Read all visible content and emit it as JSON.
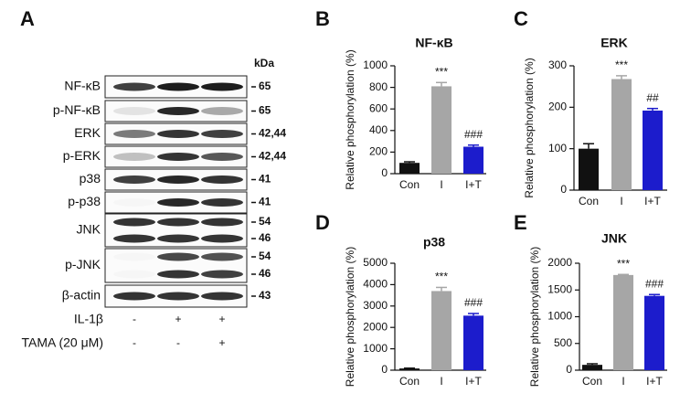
{
  "panel_labels": [
    "A",
    "B",
    "C",
    "D",
    "E"
  ],
  "blot": {
    "unit": "kDa",
    "rows": [
      {
        "label": "NF-κB",
        "markers": [
          "65"
        ]
      },
      {
        "label": "p-NF-κB",
        "markers": [
          "65"
        ]
      },
      {
        "label": "ERK",
        "markers": [
          "42,44"
        ]
      },
      {
        "label": "p-ERK",
        "markers": [
          "42,44"
        ]
      },
      {
        "label": "p38",
        "markers": [
          "41"
        ]
      },
      {
        "label": "p-p38",
        "markers": [
          "41"
        ]
      },
      {
        "label": "JNK",
        "markers": [
          "54",
          "46"
        ]
      },
      {
        "label": "p-JNK",
        "markers": [
          "54",
          "46"
        ]
      },
      {
        "label": "β-actin",
        "markers": [
          "43"
        ]
      }
    ],
    "conditions": [
      {
        "label": "IL-1β",
        "values": [
          "-",
          "+",
          "+"
        ]
      },
      {
        "label": "TAMA (20 μM)",
        "values": [
          "-",
          "-",
          "+"
        ]
      }
    ]
  },
  "chart_data": [
    {
      "type": "bar",
      "title": "NF-κB",
      "y_label": "Relative phosphorylation (%)",
      "categories": [
        "Con",
        "I",
        "I+T"
      ],
      "values": [
        100,
        810,
        250
      ],
      "errors": [
        10,
        35,
        15
      ],
      "annotations": [
        null,
        "***",
        "###"
      ],
      "colors": [
        "#111111",
        "#a6a6a6",
        "#1c1ccc"
      ],
      "ylim": [
        0,
        1000
      ],
      "yticks": [
        0,
        200,
        400,
        600,
        800,
        1000
      ]
    },
    {
      "type": "bar",
      "title": "ERK",
      "y_label": "Relative phosphorylation (%)",
      "categories": [
        "Con",
        "I",
        "I+T"
      ],
      "values": [
        100,
        268,
        192
      ],
      "errors": [
        12,
        8,
        5
      ],
      "annotations": [
        null,
        "***",
        "##"
      ],
      "colors": [
        "#111111",
        "#a6a6a6",
        "#1c1ccc"
      ],
      "ylim": [
        0,
        300
      ],
      "yticks": [
        0,
        100,
        200,
        300
      ]
    },
    {
      "type": "bar",
      "title": "p38",
      "y_label": "Relative phosphorylation (%)",
      "categories": [
        "Con",
        "I",
        "I+T"
      ],
      "values": [
        80,
        3700,
        2550
      ],
      "errors": [
        15,
        170,
        100
      ],
      "annotations": [
        null,
        "***",
        "###"
      ],
      "colors": [
        "#111111",
        "#a6a6a6",
        "#1c1ccc"
      ],
      "ylim": [
        0,
        5000
      ],
      "yticks": [
        0,
        1000,
        2000,
        3000,
        4000,
        5000
      ]
    },
    {
      "type": "bar",
      "title": "JNK",
      "y_label": "Relative phosphorylation (%)",
      "categories": [
        "Con",
        "I",
        "I+T"
      ],
      "values": [
        100,
        1780,
        1390
      ],
      "errors": [
        20,
        10,
        25
      ],
      "annotations": [
        null,
        "***",
        "###"
      ],
      "colors": [
        "#111111",
        "#a6a6a6",
        "#1c1ccc"
      ],
      "ylim": [
        0,
        2000
      ],
      "yticks": [
        0,
        500,
        1000,
        1500,
        2000
      ]
    }
  ]
}
